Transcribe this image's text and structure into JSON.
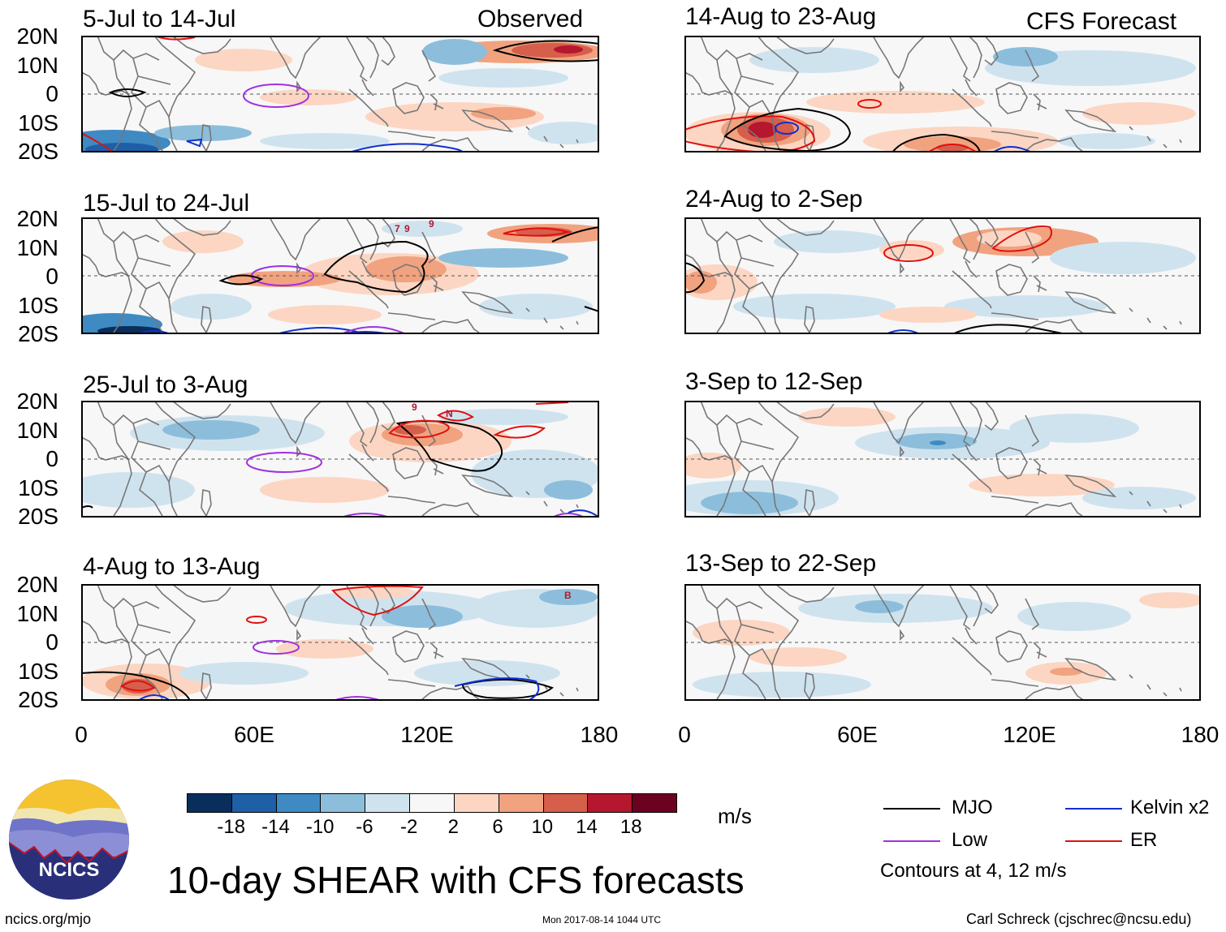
{
  "colors": {
    "mjo": "#000000",
    "low": "#a030e0",
    "kelvin": "#1030d0",
    "er": "#e01010",
    "land": "#777777",
    "scale": [
      "#0a2e5c",
      "#1f5fa8",
      "#3f8ac3",
      "#8cbedc",
      "#cfe3ef",
      "#f7f7f7",
      "#fcd6c3",
      "#f1a27f",
      "#d65f4c",
      "#b5172e",
      "#6a0220"
    ]
  },
  "panels": [
    {
      "title": "5-Jul to 14-Jul",
      "tag": "Observed"
    },
    {
      "title": "15-Jul to 24-Jul",
      "tag": ""
    },
    {
      "title": "25-Jul to 3-Aug",
      "tag": ""
    },
    {
      "title": "4-Aug to 13-Aug",
      "tag": ""
    },
    {
      "title": "14-Aug to 23-Aug",
      "tag": "CFS Forecast"
    },
    {
      "title": "24-Aug to 2-Sep",
      "tag": ""
    },
    {
      "title": "3-Sep to 12-Sep",
      "tag": ""
    },
    {
      "title": "13-Sep to 22-Sep",
      "tag": ""
    }
  ],
  "lat_labels": [
    "20N",
    "10N",
    "0",
    "10S",
    "20S"
  ],
  "lon_labels": [
    "0",
    "60E",
    "120E",
    "180"
  ],
  "colorbar": {
    "ticks": [
      "-18",
      "-14",
      "-10",
      "-6",
      "-2",
      "2",
      "6",
      "10",
      "14",
      "18"
    ],
    "units": "m/s"
  },
  "legend": {
    "mjo": "MJO",
    "low": "Low",
    "kelvin": "Kelvin x2",
    "er": "ER",
    "note": "Contours at 4, 12 m/s"
  },
  "storm_markers": [
    {
      "panel": 1,
      "labels": [
        "7",
        "9",
        "9"
      ]
    },
    {
      "panel": 2,
      "labels": [
        "9",
        "N"
      ]
    },
    {
      "panel": 3,
      "labels": [
        "B"
      ]
    }
  ],
  "logo": {
    "text": "NCICS"
  },
  "title": "10-day SHEAR with CFS forecasts",
  "footer": {
    "url": "ncics.org/mjo",
    "timestamp": "Mon 2017-08-14 1044 UTC",
    "author": "Carl Schreck (cjschrec@ncsu.edu)"
  }
}
